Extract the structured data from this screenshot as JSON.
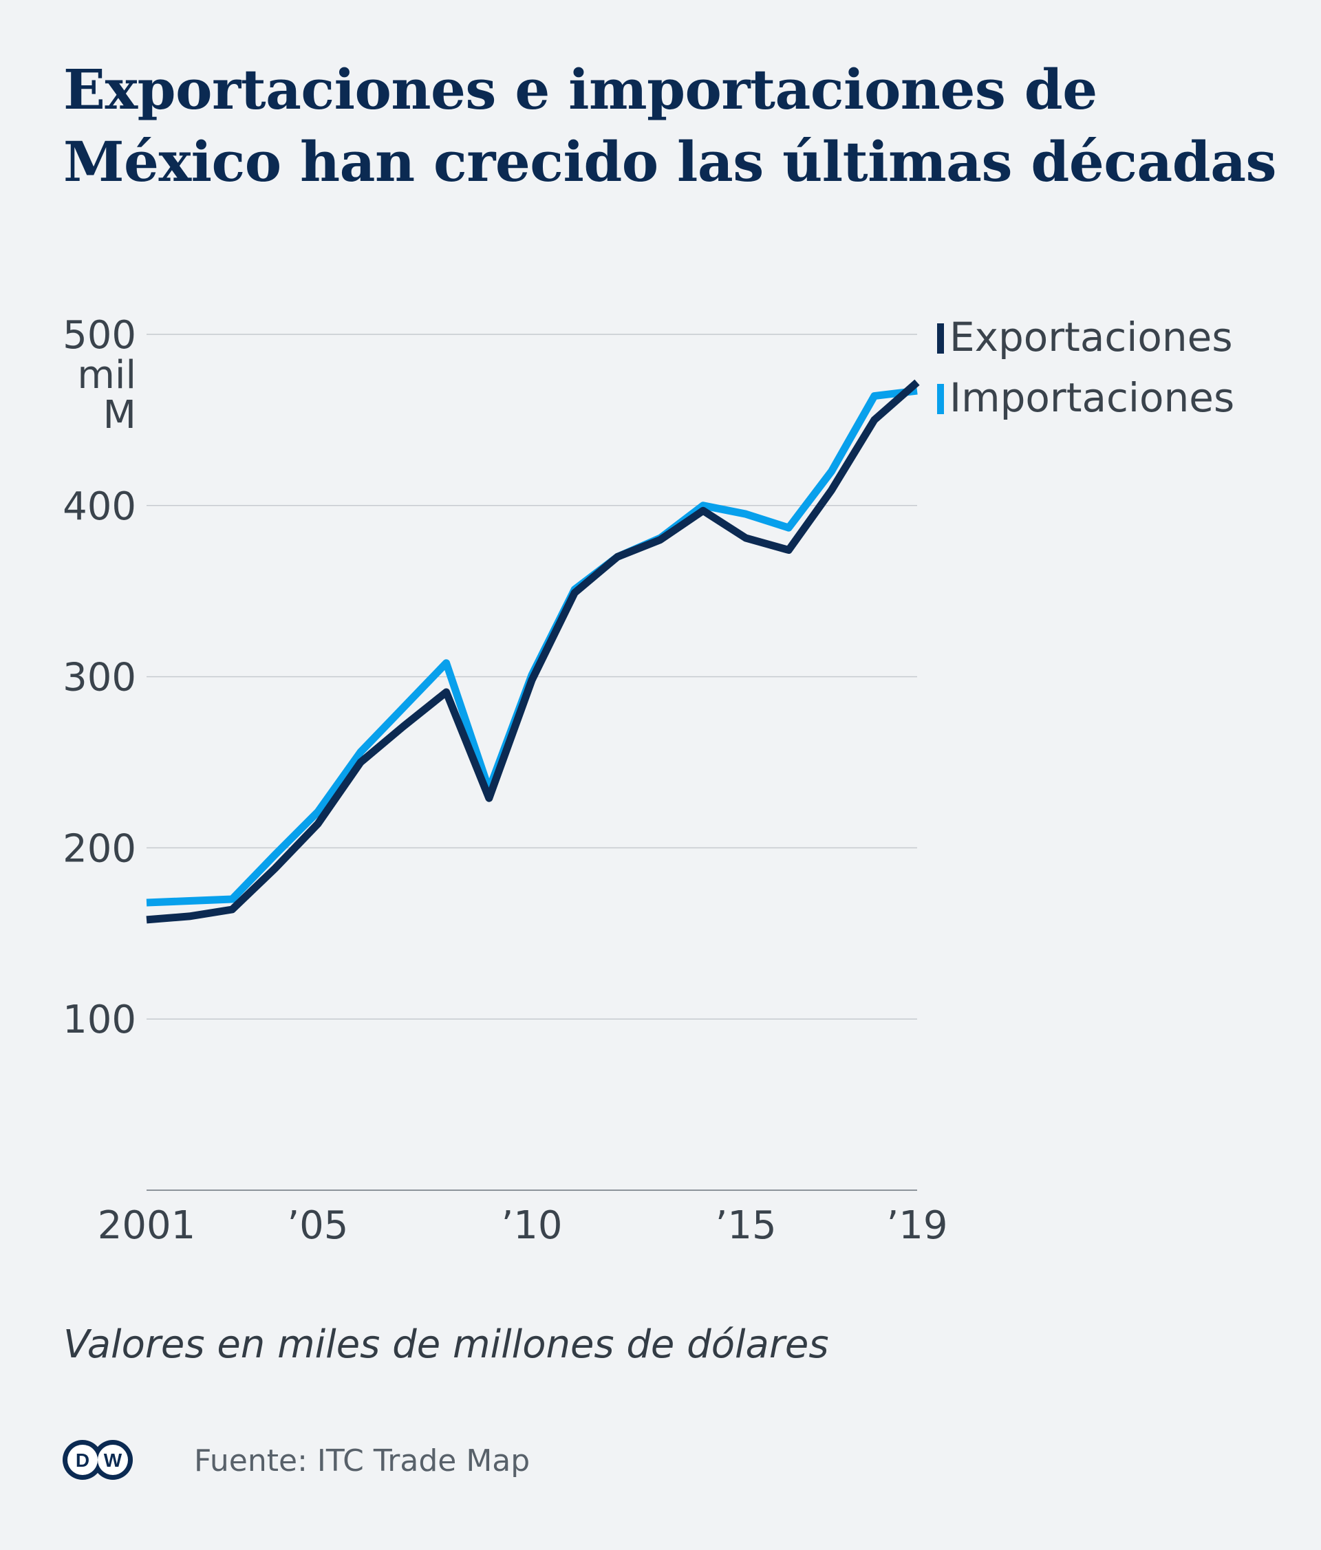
{
  "title_lines": [
    "Exportaciones e importaciones de",
    "México han crecido las últimas décadas"
  ],
  "subtitle": "Valores en miles de millones de dólares",
  "source": "Fuente: ITC Trade Map",
  "logo_text": "DW",
  "colors": {
    "background": "#f1f3f5",
    "title": "#0b2a52",
    "exports": "#0c2a52",
    "imports": "#08a0ec",
    "grid": "#c6cacf",
    "axis_text": "#3a434c"
  },
  "chart_data": {
    "type": "line",
    "x": [
      2001,
      2002,
      2003,
      2004,
      2005,
      2006,
      2007,
      2008,
      2009,
      2010,
      2011,
      2012,
      2013,
      2014,
      2015,
      2016,
      2017,
      2018,
      2019
    ],
    "series": [
      {
        "name": "Exportaciones",
        "values": [
          158,
          160,
          164,
          188,
          214,
          250,
          271,
          291,
          229,
          298,
          349,
          370,
          380,
          397,
          381,
          374,
          409,
          450,
          472
        ]
      },
      {
        "name": "Importaciones",
        "values": [
          168,
          169,
          170,
          196,
          221,
          256,
          282,
          308,
          234,
          301,
          351,
          370,
          381,
          400,
          395,
          387,
          420,
          464,
          467
        ]
      }
    ],
    "y_ticks": [
      {
        "value": 100,
        "label": "100"
      },
      {
        "value": 200,
        "label": "200"
      },
      {
        "value": 300,
        "label": "300"
      },
      {
        "value": 400,
        "label": "400"
      },
      {
        "value": 500,
        "label": "500"
      }
    ],
    "y_unit_lines": [
      "mil",
      "M"
    ],
    "x_ticks": [
      {
        "value": 2001,
        "label": "2001"
      },
      {
        "value": 2005,
        "label": "’05"
      },
      {
        "value": 2010,
        "label": "’10"
      },
      {
        "value": 2015,
        "label": "’15"
      },
      {
        "value": 2019,
        "label": "’19"
      }
    ],
    "ylim": [
      0,
      500
    ],
    "xlim": [
      2001,
      2019
    ],
    "grid": true,
    "legend_position": "top-right"
  }
}
